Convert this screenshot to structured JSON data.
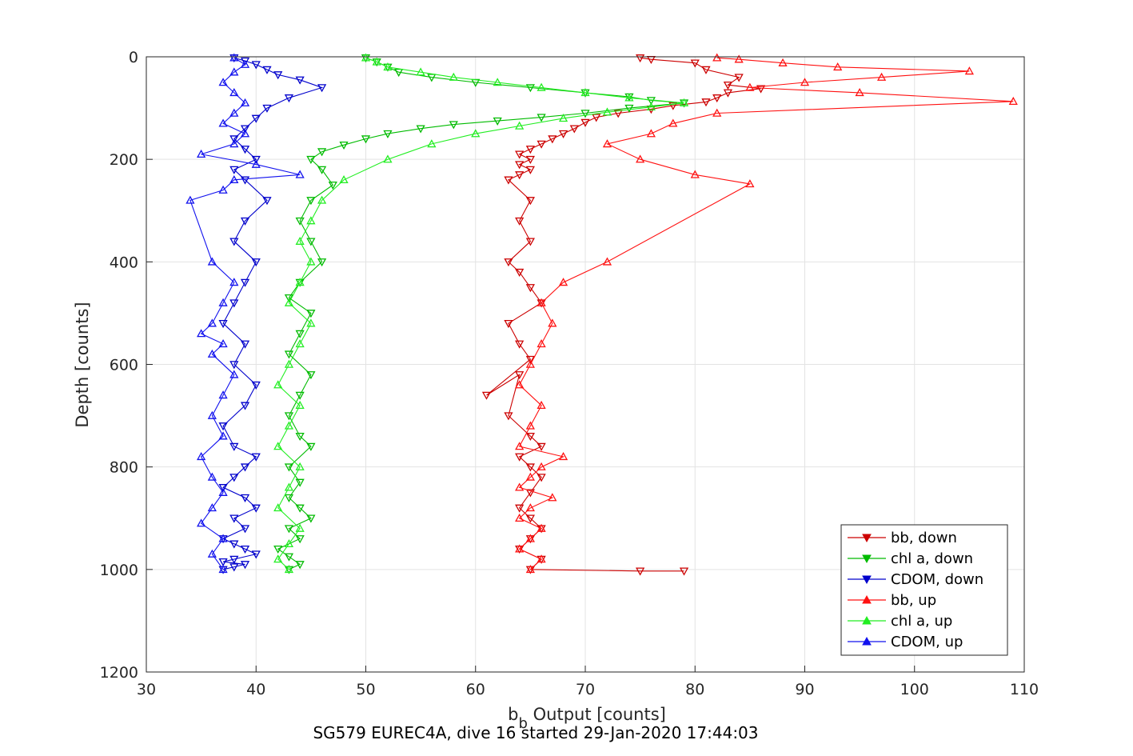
{
  "chart_data": {
    "type": "line",
    "title": "SG579 EUREC4A, dive 16 started 29-Jan-2020 17:44:03",
    "xlabel_main": "b",
    "xlabel_sub": "b",
    "xlabel_rest": " Output [counts]",
    "ylabel": "Depth [counts]",
    "xlim": [
      30,
      110
    ],
    "ylim": [
      0,
      1200
    ],
    "y_reversed": true,
    "grid": true,
    "xticks": [
      30,
      40,
      50,
      60,
      70,
      80,
      90,
      100,
      110
    ],
    "yticks": [
      0,
      200,
      400,
      600,
      800,
      1000,
      1200
    ],
    "legend_position": "bottom-right",
    "series": [
      {
        "name": "bb, down",
        "color": "#cc0000",
        "marker": "triangle-down",
        "x": [
          75,
          76,
          80,
          81,
          84,
          83,
          86,
          83,
          82,
          81,
          78,
          76,
          73,
          71,
          70,
          69,
          68,
          67,
          66,
          65,
          64,
          65,
          64,
          65,
          64,
          63,
          65,
          64,
          65,
          63,
          64,
          65,
          66,
          63,
          64,
          65,
          61,
          64,
          63,
          65,
          66,
          64,
          65,
          66,
          65,
          64,
          65,
          66,
          65,
          64,
          66,
          65,
          75,
          79
        ],
        "y": [
          2,
          5,
          12,
          25,
          40,
          55,
          62,
          70,
          80,
          88,
          95,
          102,
          110,
          118,
          128,
          140,
          150,
          160,
          170,
          180,
          190,
          200,
          210,
          220,
          230,
          240,
          280,
          320,
          360,
          400,
          420,
          450,
          480,
          520,
          560,
          590,
          660,
          620,
          700,
          740,
          760,
          780,
          800,
          820,
          850,
          880,
          900,
          920,
          940,
          960,
          980,
          1000,
          1003,
          1003
        ]
      },
      {
        "name": "chl a, down",
        "color": "#00bb00",
        "marker": "triangle-down",
        "x": [
          50,
          51,
          52,
          53,
          56,
          60,
          65,
          70,
          74,
          76,
          79,
          74,
          70,
          66,
          62,
          58,
          55,
          52,
          50,
          48,
          46,
          45,
          46,
          47,
          45,
          44,
          45,
          46,
          44,
          43,
          45,
          44,
          43,
          45,
          44,
          43,
          44,
          45,
          43,
          44,
          43,
          44,
          45,
          43,
          44,
          42,
          43,
          44,
          43
        ],
        "y": [
          2,
          10,
          20,
          30,
          40,
          50,
          60,
          70,
          78,
          85,
          90,
          100,
          110,
          118,
          125,
          132,
          140,
          150,
          160,
          172,
          185,
          200,
          220,
          250,
          280,
          320,
          360,
          400,
          440,
          470,
          500,
          540,
          580,
          620,
          660,
          700,
          740,
          760,
          800,
          830,
          860,
          880,
          900,
          920,
          940,
          960,
          975,
          990,
          1000
        ]
      },
      {
        "name": "CDOM, down",
        "color": "#0000cc",
        "marker": "triangle-down",
        "x": [
          38,
          39,
          40,
          41,
          42,
          44,
          46,
          43,
          41,
          40,
          39,
          38,
          39,
          40,
          38,
          39,
          41,
          39,
          38,
          40,
          39,
          38,
          37,
          39,
          38,
          40,
          39,
          37,
          38,
          40,
          39,
          38,
          37,
          39,
          40,
          38,
          39,
          37,
          38,
          39,
          40,
          38,
          37,
          39,
          38,
          37
        ],
        "y": [
          2,
          8,
          15,
          25,
          35,
          45,
          60,
          80,
          100,
          120,
          140,
          160,
          180,
          200,
          220,
          240,
          280,
          320,
          360,
          400,
          440,
          480,
          520,
          560,
          600,
          640,
          680,
          720,
          760,
          780,
          800,
          820,
          840,
          860,
          880,
          900,
          920,
          940,
          950,
          960,
          970,
          980,
          985,
          990,
          995,
          1000
        ]
      },
      {
        "name": "bb, up",
        "color": "#ff1111",
        "marker": "triangle-up",
        "x": [
          65,
          66,
          64,
          65,
          66,
          64,
          65,
          67,
          64,
          65,
          66,
          68,
          64,
          65,
          66,
          64,
          65,
          66,
          67,
          66,
          68,
          72,
          85,
          80,
          75,
          72,
          76,
          78,
          82,
          109,
          95,
          85,
          90,
          97,
          105,
          93,
          88,
          84,
          82
        ],
        "y": [
          1000,
          980,
          960,
          940,
          920,
          900,
          880,
          860,
          840,
          820,
          800,
          780,
          760,
          720,
          680,
          640,
          600,
          560,
          520,
          480,
          440,
          400,
          248,
          230,
          200,
          170,
          150,
          130,
          110,
          87,
          70,
          60,
          50,
          40,
          28,
          20,
          12,
          5,
          2
        ]
      },
      {
        "name": "chl a, up",
        "color": "#22ee22",
        "marker": "triangle-up",
        "x": [
          43,
          42,
          43,
          44,
          42,
          43,
          44,
          42,
          43,
          44,
          42,
          43,
          44,
          45,
          43,
          44,
          45,
          44,
          45,
          46,
          48,
          52,
          56,
          60,
          64,
          68,
          72,
          76,
          79,
          74,
          70,
          66,
          62,
          58,
          55,
          52,
          51,
          50
        ],
        "y": [
          1000,
          980,
          950,
          920,
          880,
          840,
          800,
          760,
          720,
          680,
          640,
          600,
          560,
          520,
          480,
          440,
          400,
          360,
          320,
          280,
          240,
          200,
          170,
          150,
          135,
          120,
          108,
          98,
          90,
          80,
          70,
          60,
          50,
          40,
          30,
          20,
          10,
          2
        ]
      },
      {
        "name": "CDOM, up",
        "color": "#1111ee",
        "marker": "triangle-up",
        "x": [
          37,
          36,
          37,
          35,
          36,
          37,
          36,
          35,
          37,
          36,
          37,
          38,
          36,
          37,
          35,
          36,
          37,
          38,
          36,
          34,
          37,
          38,
          44,
          40,
          35,
          38,
          39,
          37,
          38,
          39,
          38,
          37,
          38,
          39,
          38
        ],
        "y": [
          1000,
          970,
          940,
          910,
          880,
          850,
          820,
          780,
          740,
          700,
          660,
          620,
          580,
          560,
          540,
          520,
          480,
          440,
          400,
          280,
          260,
          240,
          230,
          210,
          190,
          170,
          150,
          130,
          110,
          90,
          70,
          50,
          30,
          15,
          2
        ]
      }
    ]
  }
}
